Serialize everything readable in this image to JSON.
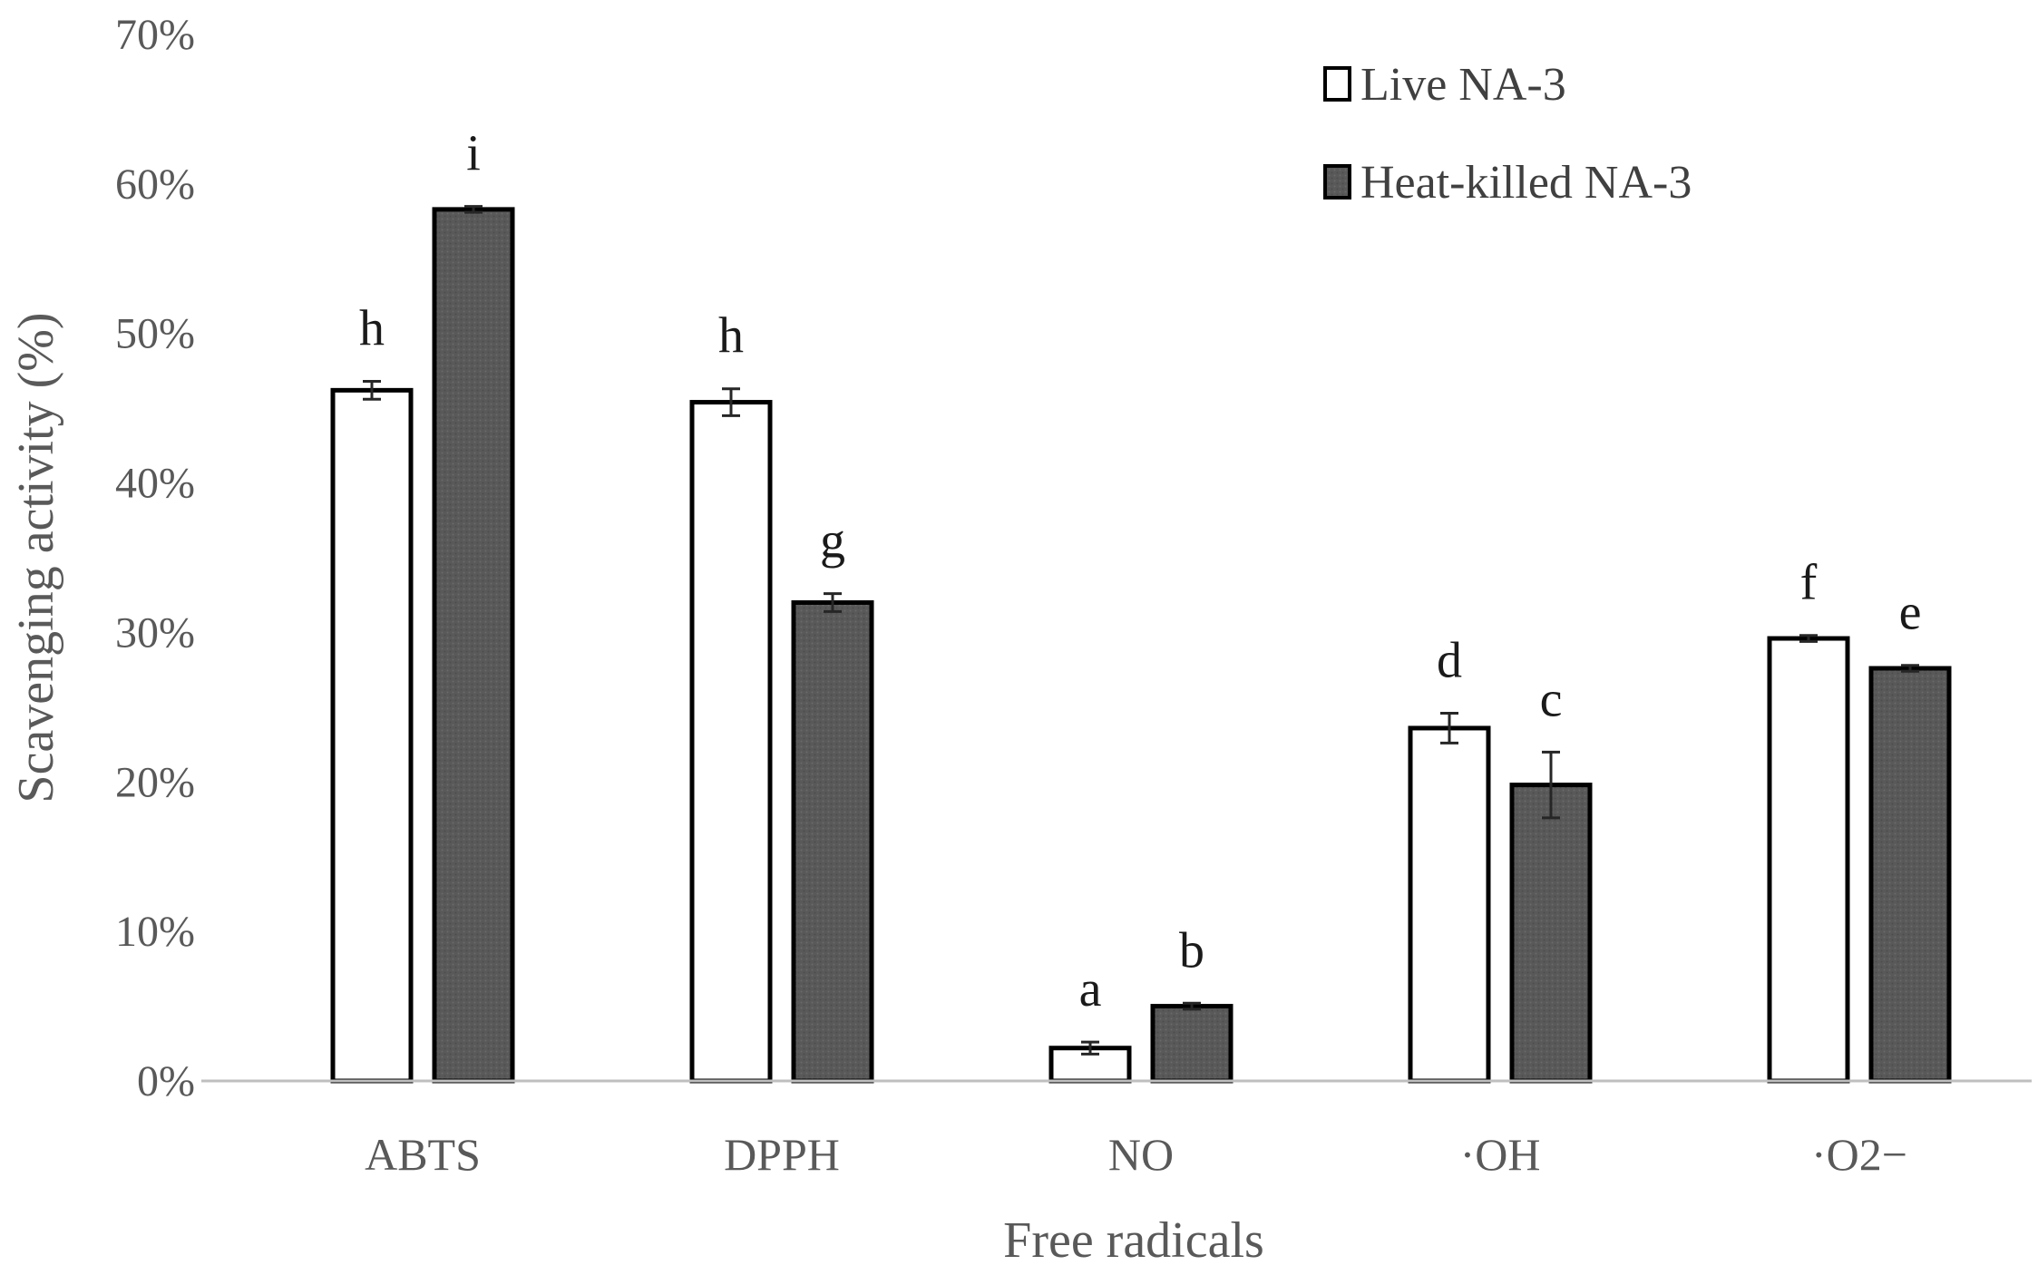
{
  "chart_data": {
    "type": "bar",
    "title": "",
    "xlabel": "Free radicals",
    "ylabel": "Scavenging activity (%)",
    "ylim": [
      0,
      70
    ],
    "y_ticks": [
      "0%",
      "10%",
      "20%",
      "30%",
      "40%",
      "50%",
      "60%",
      "70%"
    ],
    "y_tick_values": [
      0,
      10,
      20,
      30,
      40,
      50,
      60,
      70
    ],
    "grid": false,
    "legend_position": "top-right",
    "categories": [
      "ABTS",
      "DPPH",
      "NO",
      "·OH",
      "·O2−"
    ],
    "series": [
      {
        "name": "Live NA-3",
        "color": "#ffffff",
        "values": [
          46.2,
          45.4,
          2.2,
          23.6,
          29.6
        ],
        "errors": [
          0.6,
          0.9,
          0.4,
          1.0,
          0.2
        ],
        "letters": [
          "h",
          "h",
          "a",
          "d",
          "f"
        ]
      },
      {
        "name": "Heat-killed NA-3",
        "color": "#595959",
        "values": [
          58.3,
          32.0,
          5.0,
          19.8,
          27.6
        ],
        "errors": [
          0.2,
          0.6,
          0.2,
          2.2,
          0.2
        ],
        "letters": [
          "i",
          "g",
          "b",
          "c",
          "e"
        ]
      }
    ]
  }
}
